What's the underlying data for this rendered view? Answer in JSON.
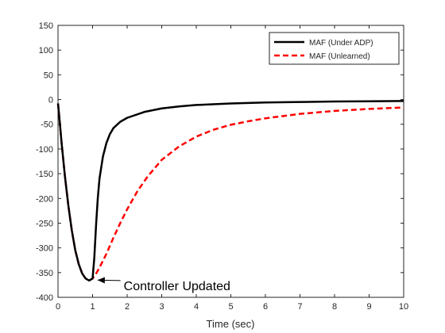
{
  "chart_data": {
    "type": "line",
    "title": "",
    "xlabel": "Time (sec)",
    "ylabel": "",
    "xlim": [
      0,
      10
    ],
    "ylim": [
      -400,
      150
    ],
    "xticks": [
      0,
      1,
      2,
      3,
      4,
      5,
      6,
      7,
      8,
      9,
      10
    ],
    "yticks": [
      150,
      100,
      50,
      0,
      -50,
      -100,
      -150,
      -200,
      -250,
      -300,
      -350,
      -400
    ],
    "grid": false,
    "legend_position": "top-right",
    "series": [
      {
        "name": "MAF (Under ADP)",
        "color": "#000000",
        "style": "solid",
        "x": [
          0,
          0.05,
          0.1,
          0.2,
          0.3,
          0.4,
          0.5,
          0.6,
          0.7,
          0.8,
          0.9,
          1.0,
          1.05,
          1.1,
          1.15,
          1.2,
          1.3,
          1.4,
          1.5,
          1.6,
          1.8,
          2.0,
          2.5,
          3.0,
          3.5,
          4.0,
          5.0,
          6.0,
          7.0,
          8.0,
          9.0,
          10.0
        ],
        "y": [
          -8,
          -45,
          -85,
          -155,
          -215,
          -265,
          -305,
          -333,
          -352,
          -362,
          -366,
          -362,
          -320,
          -255,
          -200,
          -160,
          -115,
          -88,
          -70,
          -58,
          -45,
          -37,
          -25,
          -18,
          -14,
          -11,
          -8,
          -6,
          -5,
          -4,
          -3.5,
          -3
        ]
      },
      {
        "name": "MAF (Unlearned)",
        "color": "#ff0000",
        "style": "dashed",
        "x": [
          0,
          0.05,
          0.1,
          0.2,
          0.3,
          0.4,
          0.5,
          0.6,
          0.7,
          0.8,
          0.9,
          1.0,
          1.1,
          1.2,
          1.4,
          1.6,
          1.8,
          2.0,
          2.3,
          2.6,
          3.0,
          3.5,
          4.0,
          4.5,
          5.0,
          5.5,
          6.0,
          7.0,
          8.0,
          9.0,
          10.0
        ],
        "y": [
          -8,
          -45,
          -85,
          -155,
          -215,
          -265,
          -305,
          -333,
          -352,
          -362,
          -366,
          -362,
          -352,
          -340,
          -312,
          -280,
          -250,
          -222,
          -185,
          -155,
          -122,
          -95,
          -75,
          -61,
          -51,
          -44,
          -38,
          -29,
          -23,
          -19,
          -16
        ]
      }
    ],
    "annotations": [
      {
        "text": "Controller Updated",
        "x": 1.1,
        "y": -362,
        "label_x": 1.9,
        "label_y": -379
      }
    ]
  }
}
